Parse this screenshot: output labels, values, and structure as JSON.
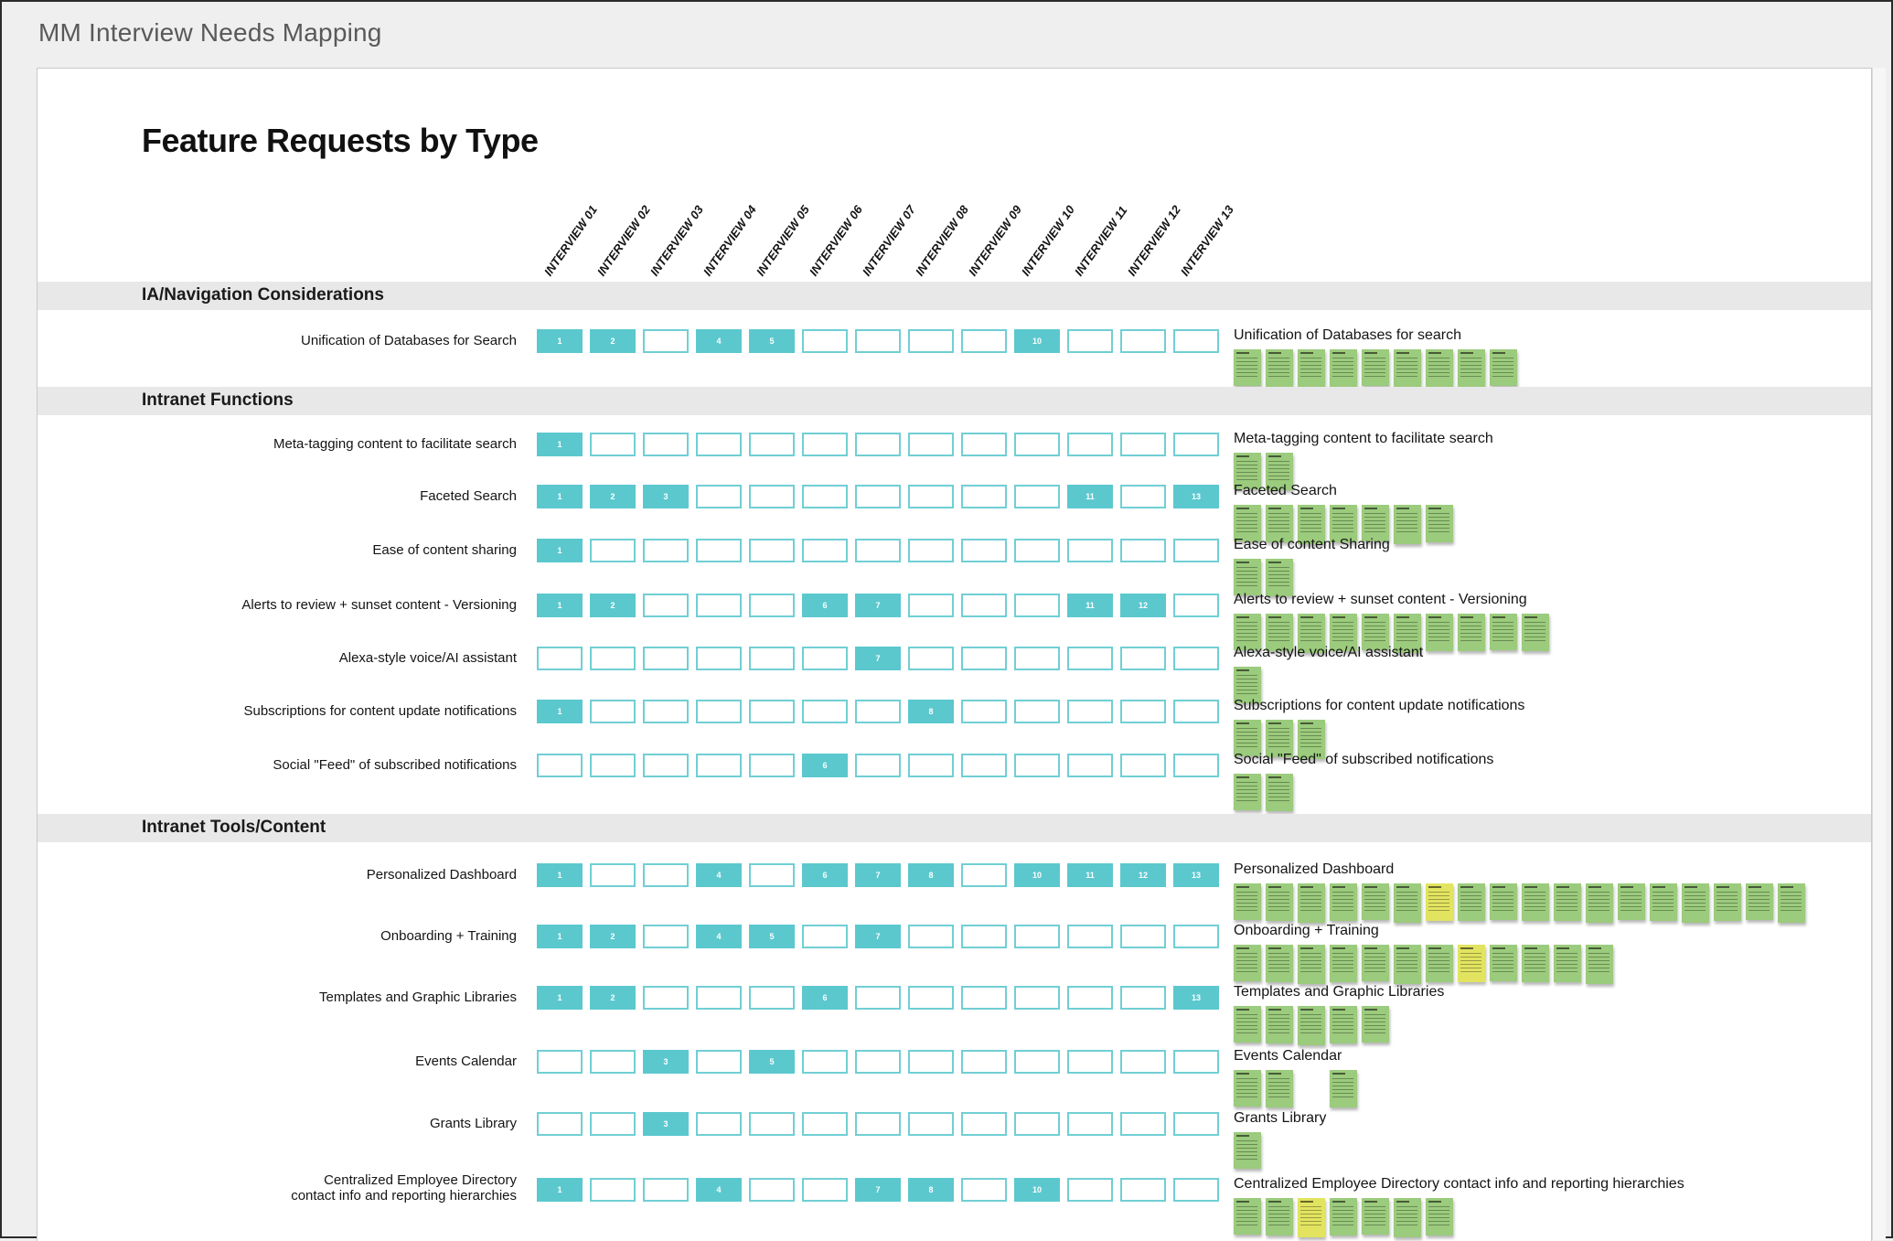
{
  "window": {
    "title": "MM Interview Needs Mapping"
  },
  "board": {
    "title": "Feature Requests by Type",
    "interviews": [
      "INTERVIEW 01",
      "INTERVIEW 02",
      "INTERVIEW 03",
      "INTERVIEW 04",
      "INTERVIEW 05",
      "INTERVIEW 06",
      "INTERVIEW 07",
      "INTERVIEW 08",
      "INTERVIEW 09",
      "INTERVIEW 10",
      "INTERVIEW 11",
      "INTERVIEW 12",
      "INTERVIEW 13"
    ],
    "sections": [
      {
        "title": "IA/Navigation Considerations",
        "rows": [
          {
            "label": "Unification of Databases for Search",
            "sticky_label": "Unification of Databases for search",
            "checked": [
              1,
              2,
              4,
              5,
              10
            ],
            "notes": [
              "g",
              "g",
              "g",
              "g",
              "g",
              "g",
              "g",
              "g",
              "g"
            ]
          }
        ]
      },
      {
        "title": "Intranet Functions",
        "rows": [
          {
            "label": "Meta-tagging content to facilitate search",
            "sticky_label": "Meta-tagging content to facilitate search",
            "checked": [
              1
            ],
            "notes": [
              "g",
              "g"
            ]
          },
          {
            "label": "Faceted Search",
            "sticky_label": "Faceted Search",
            "checked": [
              1,
              2,
              3,
              11,
              13
            ],
            "notes": [
              "g",
              "g",
              "g",
              "g",
              "g",
              "g",
              "g"
            ]
          },
          {
            "label": "Ease of content sharing",
            "sticky_label": "Ease of content Sharing",
            "checked": [
              1
            ],
            "notes": [
              "g",
              "g"
            ]
          },
          {
            "label": "Alerts to review + sunset content - Versioning",
            "sticky_label": "Alerts to review + sunset content - Versioning",
            "checked": [
              1,
              2,
              6,
              7,
              11,
              12
            ],
            "notes": [
              "g",
              "g",
              "g",
              "g",
              "g",
              "g",
              "g",
              "g",
              "g",
              "g"
            ]
          },
          {
            "label": "Alexa-style voice/AI assistant",
            "sticky_label": "Alexa-style voice/AI assistant",
            "checked": [
              7
            ],
            "notes": [
              "g"
            ]
          },
          {
            "label": "Subscriptions for content update notifications",
            "sticky_label": "Subscriptions for content update notifications",
            "checked": [
              1,
              8
            ],
            "notes": [
              "g",
              "g",
              "g"
            ]
          },
          {
            "label": "Social \"Feed\" of subscribed notifications",
            "sticky_label": "Social \"Feed\" of subscribed notifications",
            "checked": [
              6
            ],
            "notes": [
              "g",
              "g"
            ]
          }
        ]
      },
      {
        "title": "Intranet Tools/Content",
        "rows": [
          {
            "label": "Personalized Dashboard",
            "sticky_label": "Personalized Dashboard",
            "checked": [
              1,
              4,
              6,
              7,
              8,
              10,
              11,
              12,
              13
            ],
            "notes": [
              "g",
              "g",
              "g",
              "g",
              "g",
              "g",
              "y",
              "g",
              "g",
              "g",
              "g",
              "g",
              "g",
              "g",
              "g",
              "g",
              "g",
              "g"
            ]
          },
          {
            "label": "Onboarding + Training",
            "sticky_label": "Onboarding + Training",
            "checked": [
              1,
              2,
              4,
              5,
              7
            ],
            "notes": [
              "g",
              "g",
              "g",
              "g",
              "g",
              "g",
              "g",
              "y",
              "g",
              "g",
              "g",
              "g"
            ]
          },
          {
            "label": "Templates and Graphic Libraries",
            "sticky_label": "Templates and Graphic Libraries",
            "checked": [
              1,
              2,
              6,
              13
            ],
            "notes": [
              "g",
              "g",
              "g",
              "g",
              "g"
            ]
          },
          {
            "label": "Events Calendar",
            "sticky_label": "Events Calendar",
            "checked": [
              3,
              5
            ],
            "notes": [
              "g",
              "g",
              "s",
              "g"
            ]
          },
          {
            "label": "Grants Library",
            "sticky_label": "Grants Library",
            "checked": [
              3
            ],
            "notes": [
              "g"
            ]
          },
          {
            "label": "Centralized Employee Directory\ncontact info and reporting hierarchies",
            "sticky_label": "Centralized Employee Directory contact info and reporting hierarchies",
            "checked": [
              1,
              4,
              7,
              8,
              10
            ],
            "notes": [
              "g",
              "g",
              "y",
              "g",
              "g",
              "g",
              "g"
            ]
          }
        ]
      }
    ]
  },
  "colors": {
    "checked_cell": "#5bc8ce",
    "cell_border": "#70cfd4",
    "note_green": "#9bcb7c",
    "note_yellow": "#e2e460",
    "section_band": "#e8e8e8",
    "page_background": "#efefef",
    "window_title_color": "#595959"
  }
}
